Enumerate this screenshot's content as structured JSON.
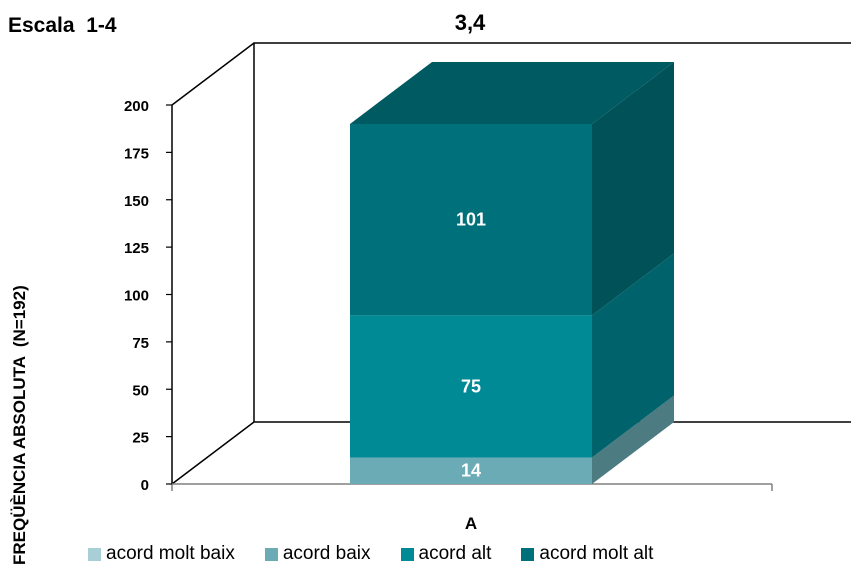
{
  "corner_title": "Escala  1-4",
  "chart_data": {
    "type": "bar",
    "title": "3,4",
    "xlabel": "",
    "ylabel": "FREQÜÈNCIA ABSOLUTA  (N=192)",
    "categories": [
      "A"
    ],
    "ylim": [
      0,
      200
    ],
    "yticks": [
      0,
      25,
      50,
      75,
      100,
      125,
      150,
      175,
      200
    ],
    "stacked": true,
    "three_d": true,
    "grid": false,
    "legend_position": "bottom",
    "series": [
      {
        "name": "acord molt baix",
        "values": [
          0
        ],
        "color": "#a9cfd6"
      },
      {
        "name": "acord baix",
        "values": [
          14
        ],
        "color": "#6aabb5"
      },
      {
        "name": "acord alt",
        "values": [
          75
        ],
        "color": "#008a96"
      },
      {
        "name": "acord molt alt",
        "values": [
          101
        ],
        "color": "#00707a"
      }
    ],
    "data_labels": [
      "",
      "14",
      "75",
      "101"
    ]
  }
}
